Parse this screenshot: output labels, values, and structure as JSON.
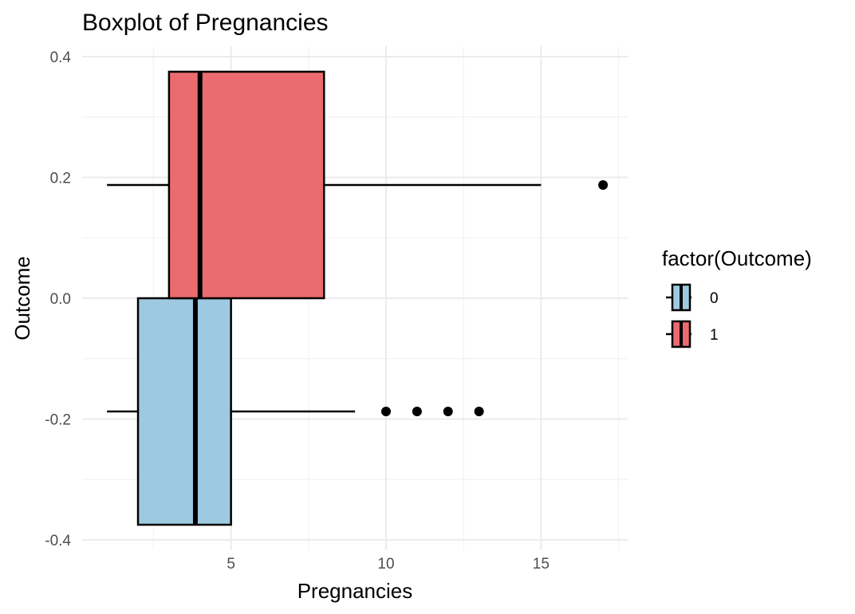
{
  "chart_data": {
    "type": "boxplot",
    "title": "Boxplot of Pregnancies",
    "xlabel": "Pregnancies",
    "ylabel": "Outcome",
    "xlim": [
      0,
      17.5
    ],
    "ylim": [
      -0.4,
      0.4
    ],
    "x_ticks": [
      5,
      10,
      15
    ],
    "y_ticks": [
      -0.4,
      -0.2,
      0.0,
      0.2,
      0.4
    ],
    "y_tick_labels": [
      "-0.4",
      "-0.2",
      "0.0",
      "0.2",
      "0.4"
    ],
    "grid": true,
    "legend": {
      "title": "factor(Outcome)",
      "placement": "right",
      "entries": [
        {
          "label": "0",
          "color": "#9ecae1"
        },
        {
          "label": "1",
          "color": "#ec6b6e"
        }
      ]
    },
    "series": [
      {
        "name": "0",
        "color": "#9ecae1",
        "y_center": -0.1875,
        "y_range": [
          -0.375,
          0.0
        ],
        "whisker_low": 1,
        "q1": 2,
        "median": 3.85,
        "q3": 5,
        "whisker_high": 9,
        "outliers": [
          10,
          11,
          12,
          13
        ]
      },
      {
        "name": "1",
        "color": "#ec6b6e",
        "y_center": 0.1875,
        "y_range": [
          0.0,
          0.375
        ],
        "whisker_low": 1,
        "q1": 3,
        "median": 4,
        "q3": 8,
        "whisker_high": 15,
        "outliers": [
          17
        ]
      }
    ]
  }
}
